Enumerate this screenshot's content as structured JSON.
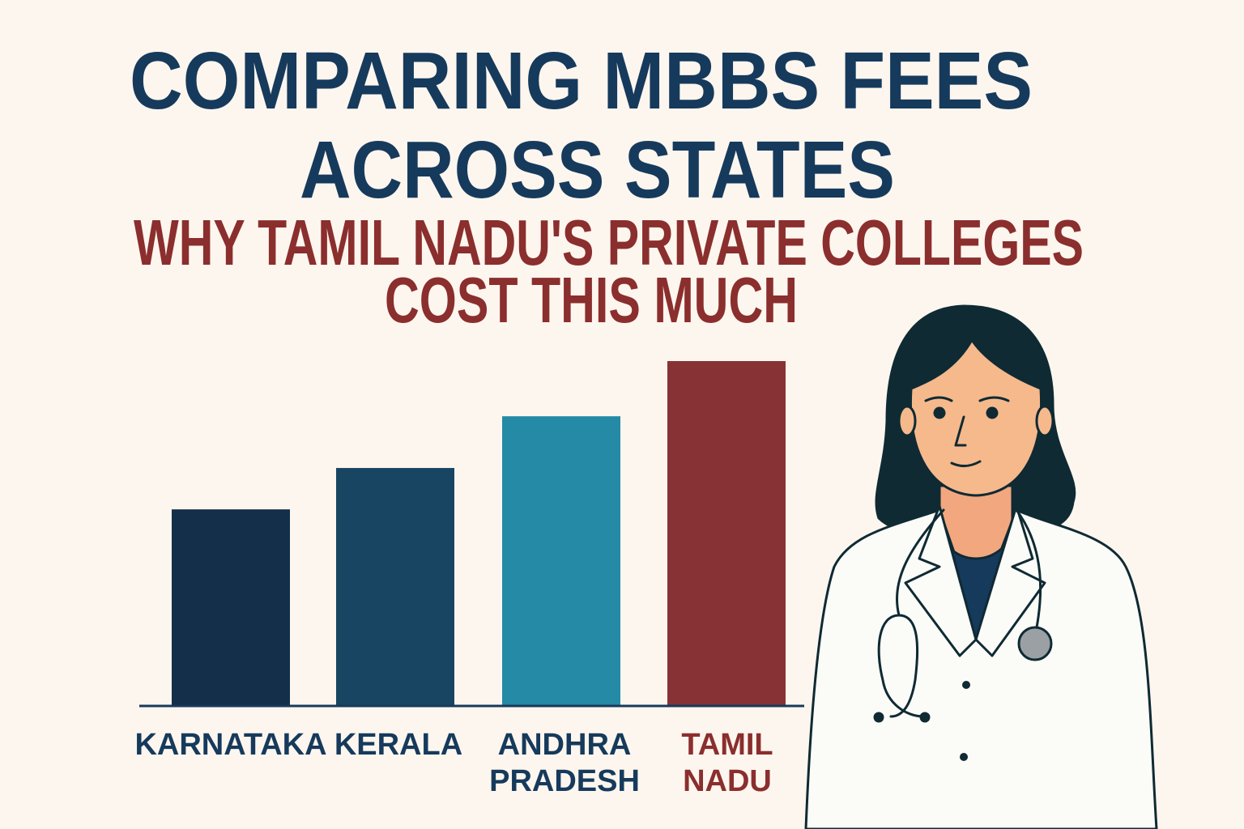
{
  "title_lines": [
    "COMPARING MBBS FEES",
    "ACROSS STATES"
  ],
  "subtitle_lines": [
    "WHY TAMIL NADU'S PRIVATE COLLEGES",
    "COST THIS MUCH"
  ],
  "colors": {
    "background": "#fdf6ee",
    "title": "#163a5c",
    "subtitle": "#8b2e2e",
    "axis": "#163a5c"
  },
  "illustration": "doctor-with-stethoscope",
  "chart_data": {
    "type": "bar",
    "title": "",
    "xlabel": "",
    "ylabel": "",
    "ylim": [
      0,
      100
    ],
    "grid": false,
    "legend": "none",
    "categories": [
      {
        "lines": [
          "KARNATAKA"
        ],
        "label_color": "#163a5c"
      },
      {
        "lines": [
          "KERALA"
        ],
        "label_color": "#163a5c"
      },
      {
        "lines": [
          "ANDHRA",
          "PRADESH"
        ],
        "label_color": "#163a5c"
      },
      {
        "lines": [
          "TAMIL",
          "NADU"
        ],
        "label_color": "#8b2e2e"
      }
    ],
    "values": [
      57,
      69,
      84,
      100
    ],
    "bar_colors": [
      "#132f4a",
      "#184562",
      "#258aa5",
      "#873336"
    ]
  }
}
